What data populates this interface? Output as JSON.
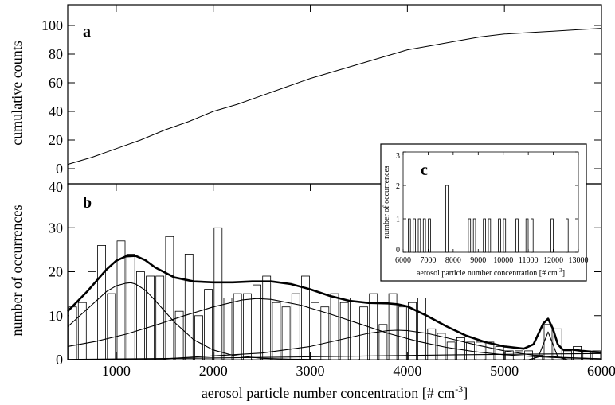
{
  "chart_data": [
    {
      "panel": "a",
      "type": "line",
      "ylabel": "cumulative counts",
      "ylim": [
        0,
        100
      ],
      "xlim": [
        500,
        6000
      ],
      "y_ticks": [
        0,
        20,
        40,
        60,
        80,
        100
      ],
      "grid": false,
      "series": [
        {
          "x": [
            500,
            750,
            1000,
            1250,
            1500,
            1750,
            2000,
            2250,
            2500,
            2750,
            3000,
            3250,
            3500,
            3750,
            4000,
            4250,
            4500,
            4750,
            5000,
            5250,
            5500,
            5750,
            6000
          ],
          "y": [
            3,
            8,
            14,
            20,
            27,
            33,
            40,
            45,
            51,
            57,
            63,
            68,
            73,
            78,
            83,
            86,
            89,
            92,
            94,
            95,
            96,
            97,
            98
          ]
        }
      ]
    },
    {
      "panel": "b",
      "type": "bar",
      "xlabel": "aerosol particle number concentration [# cm⁻³]",
      "ylabel": "number of occurrences",
      "xlim": [
        500,
        6000
      ],
      "ylim": [
        0,
        40
      ],
      "x_ticks": [
        1000,
        2000,
        3000,
        4000,
        5000,
        6000
      ],
      "y_ticks": [
        0,
        10,
        20,
        30,
        40
      ],
      "grid": false,
      "bins": [
        550,
        650,
        750,
        850,
        950,
        1050,
        1150,
        1250,
        1350,
        1450,
        1550,
        1650,
        1750,
        1850,
        1950,
        2050,
        2150,
        2250,
        2350,
        2450,
        2550,
        2650,
        2750,
        2850,
        2950,
        3050,
        3150,
        3250,
        3350,
        3450,
        3550,
        3650,
        3750,
        3850,
        3950,
        4050,
        4150,
        4250,
        4350,
        4450,
        4550,
        4650,
        4750,
        4850,
        4950,
        5050,
        5150,
        5250,
        5350,
        5450,
        5550,
        5650,
        5750,
        5850,
        5950
      ],
      "values": [
        12,
        13,
        20,
        26,
        15,
        27,
        24,
        20,
        19,
        19,
        28,
        11,
        24,
        10,
        16,
        30,
        14,
        15,
        15,
        17,
        19,
        13,
        12,
        15,
        19,
        13,
        12,
        15,
        13,
        14,
        12,
        15,
        8,
        15,
        12,
        13,
        14,
        7,
        6,
        4,
        5,
        4,
        4,
        4,
        3,
        2,
        2,
        2,
        1,
        8,
        7,
        2,
        3,
        2,
        2
      ],
      "curves": [
        {
          "role": "total fit",
          "x": [
            500,
            700,
            900,
            1000,
            1100,
            1200,
            1300,
            1400,
            1600,
            1800,
            2000,
            2200,
            2400,
            2600,
            2800,
            3000,
            3200,
            3400,
            3600,
            3800,
            3900,
            4000,
            4200,
            4400,
            4600,
            4800,
            5000,
            5200,
            5300,
            5400,
            5450,
            5500,
            5550,
            5600,
            5700,
            5800,
            5900,
            6000
          ],
          "y": [
            11,
            15.5,
            20.5,
            22.5,
            23.5,
            23.6,
            22.6,
            21,
            18.7,
            17.8,
            17.6,
            17.6,
            17.8,
            17.8,
            17.2,
            16,
            14.5,
            13.4,
            12.9,
            12.8,
            12.6,
            12.1,
            10,
            7.6,
            5.5,
            4,
            3,
            2.5,
            3.5,
            8.2,
            9.3,
            7,
            3.5,
            2.3,
            2.3,
            2,
            1.8,
            1.6
          ]
        },
        {
          "role": "mode 1",
          "x": [
            500,
            700,
            900,
            1000,
            1100,
            1150,
            1200,
            1300,
            1400,
            1600,
            1800,
            2000,
            2200,
            2500,
            2800,
            3200
          ],
          "y": [
            7.5,
            11.5,
            15.5,
            16.8,
            17.4,
            17.5,
            17.2,
            15.8,
            13.5,
            8.5,
            4.5,
            2.2,
            1,
            0.3,
            0.1,
            0
          ]
        },
        {
          "role": "mode 2",
          "x": [
            500,
            800,
            1100,
            1400,
            1700,
            2000,
            2300,
            2450,
            2600,
            2900,
            3200,
            3500,
            3800,
            4100,
            4400,
            4700,
            5000,
            5300,
            5600,
            6000
          ],
          "y": [
            3,
            4.2,
            5.8,
            7.8,
            10,
            12,
            13.6,
            13.9,
            13.7,
            12.4,
            10.4,
            8.2,
            6,
            4.2,
            2.8,
            1.8,
            1.1,
            0.7,
            0.4,
            0.2
          ]
        },
        {
          "role": "mode 3",
          "x": [
            500,
            1500,
            2500,
            3000,
            3300,
            3600,
            3800,
            3900,
            4000,
            4200,
            4400,
            4700,
            5000,
            5300,
            5600,
            6000
          ],
          "y": [
            0,
            0.2,
            1.5,
            3,
            4.5,
            6,
            6.6,
            6.7,
            6.6,
            6,
            5,
            3.4,
            2,
            1,
            0.5,
            0.2
          ]
        },
        {
          "role": "mode 4",
          "x": [
            5250,
            5350,
            5400,
            5450,
            5500,
            5550,
            5650
          ],
          "y": [
            0,
            0.6,
            3.5,
            6.3,
            3.5,
            0.6,
            0
          ]
        },
        {
          "role": "mode 5",
          "x": [
            500,
            1500,
            2500,
            3500,
            4500,
            5500,
            6000
          ],
          "y": [
            0.05,
            0.25,
            0.5,
            0.8,
            1.1,
            1.3,
            1.4
          ]
        }
      ]
    },
    {
      "panel": "c",
      "type": "bar",
      "xlabel": "aerosol particle number concentration [# cm⁻³]",
      "ylabel": "number of occurrences",
      "xlim": [
        6000,
        13000
      ],
      "ylim": [
        0,
        3
      ],
      "x_ticks": [
        6000,
        7000,
        8000,
        9000,
        10000,
        11000,
        12000,
        13000
      ],
      "y_ticks": [
        0,
        1,
        2,
        3
      ],
      "x_tick_labels": [
        "6000",
        "7000",
        "8000",
        "9000",
        "10000",
        "11000",
        "12000",
        "13000"
      ],
      "bins": [
        6250,
        6450,
        6650,
        6850,
        7050,
        7750,
        8650,
        8850,
        9250,
        9450,
        9850,
        10050,
        10550,
        10950,
        11150,
        11950,
        12550
      ],
      "values": [
        1,
        1,
        1,
        1,
        1,
        2,
        1,
        1,
        1,
        1,
        1,
        1,
        1,
        1,
        1,
        1,
        1
      ]
    }
  ],
  "figure": {
    "panel_a_letter": "a",
    "panel_b_letter": "b",
    "panel_c_letter": "c",
    "a_ylabel": "cumulative counts",
    "b_ylabel": "number of occurrences",
    "b_xlabel_main": "aerosol particle number concentration [# cm",
    "b_xlabel_sup": "-3",
    "b_xlabel_end": "]",
    "c_ylabel": "number of occurrences",
    "c_xlabel_main": "aerosol particle number concentration [# cm",
    "c_xlabel_sup": "-3",
    "c_xlabel_end": "]"
  }
}
